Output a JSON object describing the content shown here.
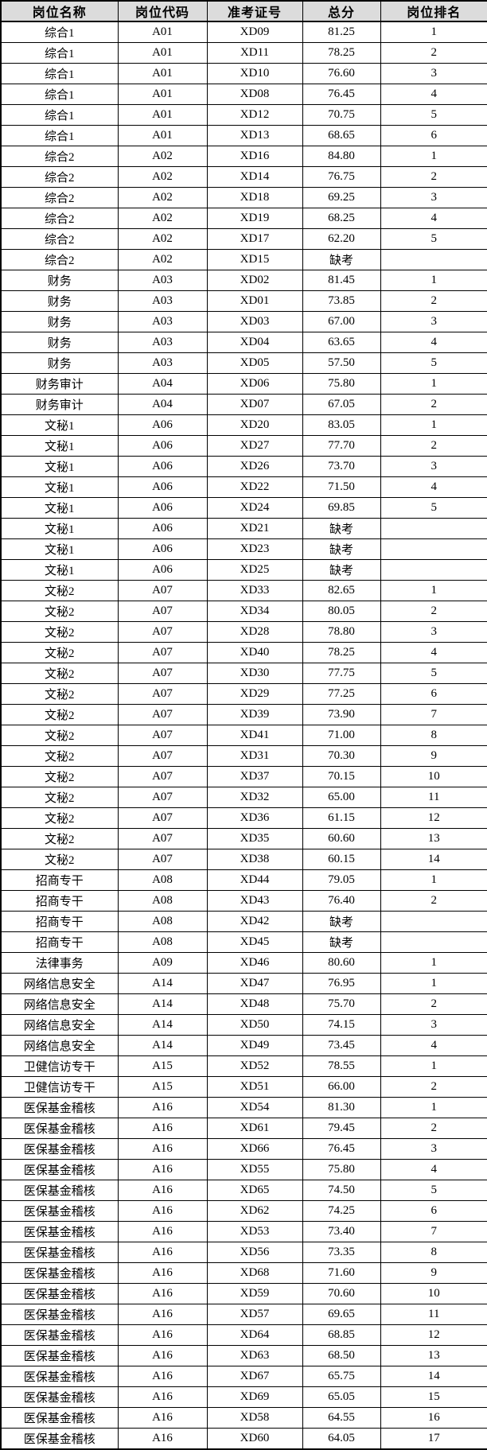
{
  "colors": {
    "header_bg": "#dcdcdc",
    "border": "#000000",
    "text": "#000000",
    "row_bg": "#ffffff"
  },
  "table": {
    "headers": [
      "岗位名称",
      "岗位代码",
      "准考证号",
      "总分",
      "岗位排名"
    ],
    "rows": [
      [
        "综合1",
        "A01",
        "XD09",
        "81.25",
        "1"
      ],
      [
        "综合1",
        "A01",
        "XD11",
        "78.25",
        "2"
      ],
      [
        "综合1",
        "A01",
        "XD10",
        "76.60",
        "3"
      ],
      [
        "综合1",
        "A01",
        "XD08",
        "76.45",
        "4"
      ],
      [
        "综合1",
        "A01",
        "XD12",
        "70.75",
        "5"
      ],
      [
        "综合1",
        "A01",
        "XD13",
        "68.65",
        "6"
      ],
      [
        "综合2",
        "A02",
        "XD16",
        "84.80",
        "1"
      ],
      [
        "综合2",
        "A02",
        "XD14",
        "76.75",
        "2"
      ],
      [
        "综合2",
        "A02",
        "XD18",
        "69.25",
        "3"
      ],
      [
        "综合2",
        "A02",
        "XD19",
        "68.25",
        "4"
      ],
      [
        "综合2",
        "A02",
        "XD17",
        "62.20",
        "5"
      ],
      [
        "综合2",
        "A02",
        "XD15",
        "缺考",
        ""
      ],
      [
        "财务",
        "A03",
        "XD02",
        "81.45",
        "1"
      ],
      [
        "财务",
        "A03",
        "XD01",
        "73.85",
        "2"
      ],
      [
        "财务",
        "A03",
        "XD03",
        "67.00",
        "3"
      ],
      [
        "财务",
        "A03",
        "XD04",
        "63.65",
        "4"
      ],
      [
        "财务",
        "A03",
        "XD05",
        "57.50",
        "5"
      ],
      [
        "财务审计",
        "A04",
        "XD06",
        "75.80",
        "1"
      ],
      [
        "财务审计",
        "A04",
        "XD07",
        "67.05",
        "2"
      ],
      [
        "文秘1",
        "A06",
        "XD20",
        "83.05",
        "1"
      ],
      [
        "文秘1",
        "A06",
        "XD27",
        "77.70",
        "2"
      ],
      [
        "文秘1",
        "A06",
        "XD26",
        "73.70",
        "3"
      ],
      [
        "文秘1",
        "A06",
        "XD22",
        "71.50",
        "4"
      ],
      [
        "文秘1",
        "A06",
        "XD24",
        "69.85",
        "5"
      ],
      [
        "文秘1",
        "A06",
        "XD21",
        "缺考",
        ""
      ],
      [
        "文秘1",
        "A06",
        "XD23",
        "缺考",
        ""
      ],
      [
        "文秘1",
        "A06",
        "XD25",
        "缺考",
        ""
      ],
      [
        "文秘2",
        "A07",
        "XD33",
        "82.65",
        "1"
      ],
      [
        "文秘2",
        "A07",
        "XD34",
        "80.05",
        "2"
      ],
      [
        "文秘2",
        "A07",
        "XD28",
        "78.80",
        "3"
      ],
      [
        "文秘2",
        "A07",
        "XD40",
        "78.25",
        "4"
      ],
      [
        "文秘2",
        "A07",
        "XD30",
        "77.75",
        "5"
      ],
      [
        "文秘2",
        "A07",
        "XD29",
        "77.25",
        "6"
      ],
      [
        "文秘2",
        "A07",
        "XD39",
        "73.90",
        "7"
      ],
      [
        "文秘2",
        "A07",
        "XD41",
        "71.00",
        "8"
      ],
      [
        "文秘2",
        "A07",
        "XD31",
        "70.30",
        "9"
      ],
      [
        "文秘2",
        "A07",
        "XD37",
        "70.15",
        "10"
      ],
      [
        "文秘2",
        "A07",
        "XD32",
        "65.00",
        "11"
      ],
      [
        "文秘2",
        "A07",
        "XD36",
        "61.15",
        "12"
      ],
      [
        "文秘2",
        "A07",
        "XD35",
        "60.60",
        "13"
      ],
      [
        "文秘2",
        "A07",
        "XD38",
        "60.15",
        "14"
      ],
      [
        "招商专干",
        "A08",
        "XD44",
        "79.05",
        "1"
      ],
      [
        "招商专干",
        "A08",
        "XD43",
        "76.40",
        "2"
      ],
      [
        "招商专干",
        "A08",
        "XD42",
        "缺考",
        ""
      ],
      [
        "招商专干",
        "A08",
        "XD45",
        "缺考",
        ""
      ],
      [
        "法律事务",
        "A09",
        "XD46",
        "80.60",
        "1"
      ],
      [
        "网络信息安全",
        "A14",
        "XD47",
        "76.95",
        "1"
      ],
      [
        "网络信息安全",
        "A14",
        "XD48",
        "75.70",
        "2"
      ],
      [
        "网络信息安全",
        "A14",
        "XD50",
        "74.15",
        "3"
      ],
      [
        "网络信息安全",
        "A14",
        "XD49",
        "73.45",
        "4"
      ],
      [
        "卫健信访专干",
        "A15",
        "XD52",
        "78.55",
        "1"
      ],
      [
        "卫健信访专干",
        "A15",
        "XD51",
        "66.00",
        "2"
      ],
      [
        "医保基金稽核",
        "A16",
        "XD54",
        "81.30",
        "1"
      ],
      [
        "医保基金稽核",
        "A16",
        "XD61",
        "79.45",
        "2"
      ],
      [
        "医保基金稽核",
        "A16",
        "XD66",
        "76.45",
        "3"
      ],
      [
        "医保基金稽核",
        "A16",
        "XD55",
        "75.80",
        "4"
      ],
      [
        "医保基金稽核",
        "A16",
        "XD65",
        "74.50",
        "5"
      ],
      [
        "医保基金稽核",
        "A16",
        "XD62",
        "74.25",
        "6"
      ],
      [
        "医保基金稽核",
        "A16",
        "XD53",
        "73.40",
        "7"
      ],
      [
        "医保基金稽核",
        "A16",
        "XD56",
        "73.35",
        "8"
      ],
      [
        "医保基金稽核",
        "A16",
        "XD68",
        "71.60",
        "9"
      ],
      [
        "医保基金稽核",
        "A16",
        "XD59",
        "70.60",
        "10"
      ],
      [
        "医保基金稽核",
        "A16",
        "XD57",
        "69.65",
        "11"
      ],
      [
        "医保基金稽核",
        "A16",
        "XD64",
        "68.85",
        "12"
      ],
      [
        "医保基金稽核",
        "A16",
        "XD63",
        "68.50",
        "13"
      ],
      [
        "医保基金稽核",
        "A16",
        "XD67",
        "65.75",
        "14"
      ],
      [
        "医保基金稽核",
        "A16",
        "XD69",
        "65.05",
        "15"
      ],
      [
        "医保基金稽核",
        "A16",
        "XD58",
        "64.55",
        "16"
      ],
      [
        "医保基金稽核",
        "A16",
        "XD60",
        "64.05",
        "17"
      ]
    ]
  }
}
